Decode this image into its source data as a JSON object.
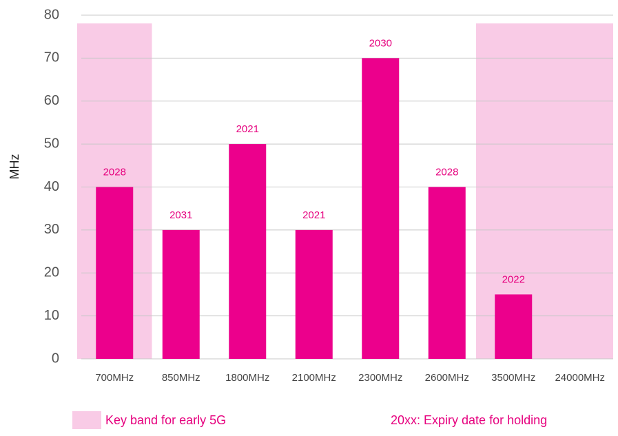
{
  "chart_data": {
    "type": "bar",
    "y_label": "MHz",
    "categories": [
      "700MHz",
      "850MHz",
      "1800MHz",
      "2100MHz",
      "2300MHz",
      "2600MHz",
      "3500MHz",
      "24000MHz"
    ],
    "values": [
      40,
      30,
      50,
      30,
      70,
      40,
      15,
      null
    ],
    "expiry_labels": [
      "2028",
      "2031",
      "2021",
      "2021",
      "2030",
      "2028",
      "2022",
      null
    ],
    "key_band": [
      true,
      false,
      false,
      false,
      false,
      false,
      true,
      true
    ],
    "color": "#ec008c",
    "highlight_color": "#f9cbe6",
    "ylim": [
      0,
      80
    ],
    "yticks": [
      0,
      10,
      20,
      30,
      40,
      50,
      60,
      70,
      80
    ],
    "grid": true,
    "legend": "Key band for early 5G",
    "note": "20xx: Expiry date for holding"
  }
}
